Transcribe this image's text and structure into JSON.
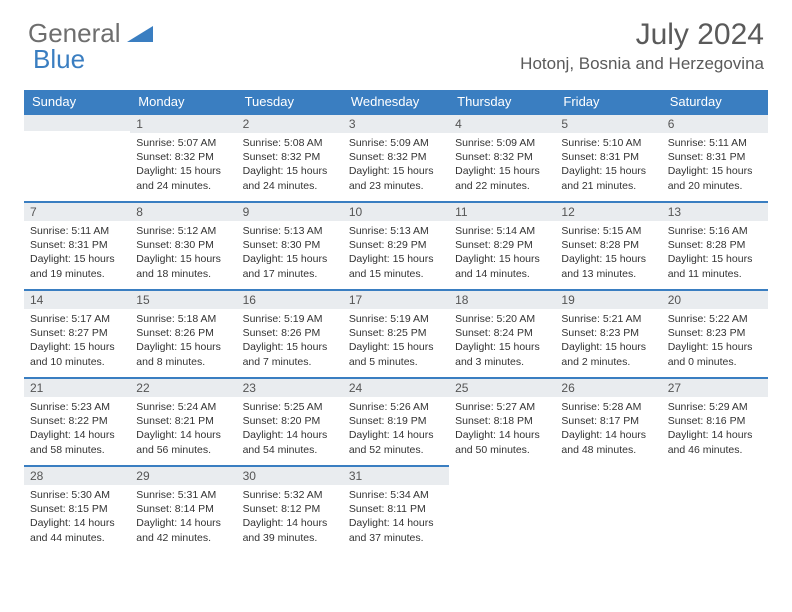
{
  "brand": {
    "part1": "General",
    "part2": "Blue",
    "color_gray": "#6e6e6e",
    "color_blue": "#3a7ec1"
  },
  "title": "July 2024",
  "location": "Hotonj, Bosnia and Herzegovina",
  "header_bg": "#3a7ec1",
  "daynum_bg": "#e9ecef",
  "weekdays": [
    "Sunday",
    "Monday",
    "Tuesday",
    "Wednesday",
    "Thursday",
    "Friday",
    "Saturday"
  ],
  "weeks": [
    [
      null,
      {
        "d": "1",
        "sr": "5:07 AM",
        "ss": "8:32 PM",
        "dl": "15 hours and 24 minutes."
      },
      {
        "d": "2",
        "sr": "5:08 AM",
        "ss": "8:32 PM",
        "dl": "15 hours and 24 minutes."
      },
      {
        "d": "3",
        "sr": "5:09 AM",
        "ss": "8:32 PM",
        "dl": "15 hours and 23 minutes."
      },
      {
        "d": "4",
        "sr": "5:09 AM",
        "ss": "8:32 PM",
        "dl": "15 hours and 22 minutes."
      },
      {
        "d": "5",
        "sr": "5:10 AM",
        "ss": "8:31 PM",
        "dl": "15 hours and 21 minutes."
      },
      {
        "d": "6",
        "sr": "5:11 AM",
        "ss": "8:31 PM",
        "dl": "15 hours and 20 minutes."
      }
    ],
    [
      {
        "d": "7",
        "sr": "5:11 AM",
        "ss": "8:31 PM",
        "dl": "15 hours and 19 minutes."
      },
      {
        "d": "8",
        "sr": "5:12 AM",
        "ss": "8:30 PM",
        "dl": "15 hours and 18 minutes."
      },
      {
        "d": "9",
        "sr": "5:13 AM",
        "ss": "8:30 PM",
        "dl": "15 hours and 17 minutes."
      },
      {
        "d": "10",
        "sr": "5:13 AM",
        "ss": "8:29 PM",
        "dl": "15 hours and 15 minutes."
      },
      {
        "d": "11",
        "sr": "5:14 AM",
        "ss": "8:29 PM",
        "dl": "15 hours and 14 minutes."
      },
      {
        "d": "12",
        "sr": "5:15 AM",
        "ss": "8:28 PM",
        "dl": "15 hours and 13 minutes."
      },
      {
        "d": "13",
        "sr": "5:16 AM",
        "ss": "8:28 PM",
        "dl": "15 hours and 11 minutes."
      }
    ],
    [
      {
        "d": "14",
        "sr": "5:17 AM",
        "ss": "8:27 PM",
        "dl": "15 hours and 10 minutes."
      },
      {
        "d": "15",
        "sr": "5:18 AM",
        "ss": "8:26 PM",
        "dl": "15 hours and 8 minutes."
      },
      {
        "d": "16",
        "sr": "5:19 AM",
        "ss": "8:26 PM",
        "dl": "15 hours and 7 minutes."
      },
      {
        "d": "17",
        "sr": "5:19 AM",
        "ss": "8:25 PM",
        "dl": "15 hours and 5 minutes."
      },
      {
        "d": "18",
        "sr": "5:20 AM",
        "ss": "8:24 PM",
        "dl": "15 hours and 3 minutes."
      },
      {
        "d": "19",
        "sr": "5:21 AM",
        "ss": "8:23 PM",
        "dl": "15 hours and 2 minutes."
      },
      {
        "d": "20",
        "sr": "5:22 AM",
        "ss": "8:23 PM",
        "dl": "15 hours and 0 minutes."
      }
    ],
    [
      {
        "d": "21",
        "sr": "5:23 AM",
        "ss": "8:22 PM",
        "dl": "14 hours and 58 minutes."
      },
      {
        "d": "22",
        "sr": "5:24 AM",
        "ss": "8:21 PM",
        "dl": "14 hours and 56 minutes."
      },
      {
        "d": "23",
        "sr": "5:25 AM",
        "ss": "8:20 PM",
        "dl": "14 hours and 54 minutes."
      },
      {
        "d": "24",
        "sr": "5:26 AM",
        "ss": "8:19 PM",
        "dl": "14 hours and 52 minutes."
      },
      {
        "d": "25",
        "sr": "5:27 AM",
        "ss": "8:18 PM",
        "dl": "14 hours and 50 minutes."
      },
      {
        "d": "26",
        "sr": "5:28 AM",
        "ss": "8:17 PM",
        "dl": "14 hours and 48 minutes."
      },
      {
        "d": "27",
        "sr": "5:29 AM",
        "ss": "8:16 PM",
        "dl": "14 hours and 46 minutes."
      }
    ],
    [
      {
        "d": "28",
        "sr": "5:30 AM",
        "ss": "8:15 PM",
        "dl": "14 hours and 44 minutes."
      },
      {
        "d": "29",
        "sr": "5:31 AM",
        "ss": "8:14 PM",
        "dl": "14 hours and 42 minutes."
      },
      {
        "d": "30",
        "sr": "5:32 AM",
        "ss": "8:12 PM",
        "dl": "14 hours and 39 minutes."
      },
      {
        "d": "31",
        "sr": "5:34 AM",
        "ss": "8:11 PM",
        "dl": "14 hours and 37 minutes."
      },
      null,
      null,
      null
    ]
  ],
  "labels": {
    "sunrise": "Sunrise:",
    "sunset": "Sunset:",
    "daylight": "Daylight:"
  }
}
